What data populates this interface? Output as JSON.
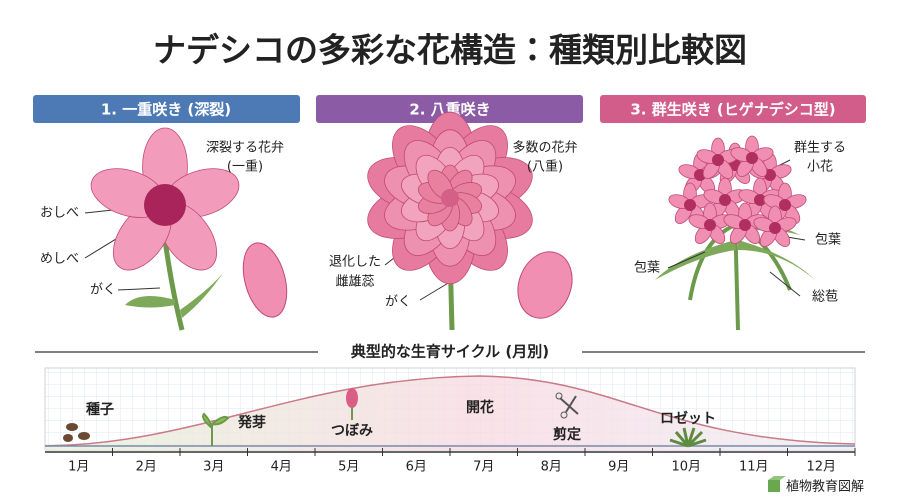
{
  "title": "ナデシコの多彩な花構造：種類別比較図",
  "panels": [
    {
      "header": "1. 一重咲き (深裂)",
      "labels": [
        {
          "lines": [
            "深裂する花弁",
            "(一重)"
          ]
        },
        {
          "lines": [
            "おしべ"
          ]
        },
        {
          "lines": [
            "めしべ"
          ]
        },
        {
          "lines": [
            "がく"
          ]
        }
      ]
    },
    {
      "header": "2. 八重咲き",
      "labels": [
        {
          "lines": [
            "多数の花弁",
            "(八重)"
          ]
        },
        {
          "lines": [
            "退化した",
            "雌雄蕊"
          ]
        },
        {
          "lines": [
            "がく"
          ]
        }
      ]
    },
    {
      "header": "3. 群生咲き (ヒゲナデシコ型)",
      "labels": [
        {
          "lines": [
            "群生する",
            "小花"
          ]
        },
        {
          "lines": [
            "包葉"
          ]
        },
        {
          "lines": [
            "包葉"
          ]
        },
        {
          "lines": [
            "総苞"
          ]
        }
      ]
    }
  ],
  "cycle": {
    "title": "典型的な生育サイクル (月別)",
    "months": [
      "1月",
      "2月",
      "3月",
      "4月",
      "5月",
      "6月",
      "7月",
      "8月",
      "9月",
      "10月",
      "11月",
      "12月"
    ],
    "stages": [
      "種子",
      "発芽",
      "つぼみ",
      "開花",
      "剪定",
      "ロゼット"
    ]
  },
  "footer": "植物教育図解"
}
